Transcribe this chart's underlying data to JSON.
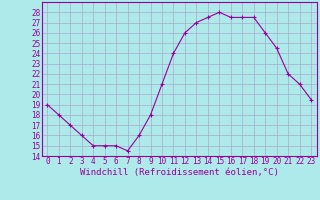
{
  "x": [
    0,
    1,
    2,
    3,
    4,
    5,
    6,
    7,
    8,
    9,
    10,
    11,
    12,
    13,
    14,
    15,
    16,
    17,
    18,
    19,
    20,
    21,
    22,
    23
  ],
  "y": [
    19,
    18,
    17,
    16,
    15,
    15,
    15,
    14.5,
    16,
    18,
    21,
    24,
    26,
    27,
    27.5,
    28,
    27.5,
    27.5,
    27.5,
    26,
    24.5,
    22,
    21,
    19.5
  ],
  "line_color": "#990099",
  "marker": "+",
  "bg_color": "#aeeaea",
  "grid_color": "#aaaacc",
  "xlabel": "Windchill (Refroidissement éolien,°C)",
  "xlabel_color": "#990099",
  "tick_color": "#990099",
  "ylim": [
    14,
    29
  ],
  "xlim": [
    -0.5,
    23.5
  ],
  "yticks": [
    14,
    15,
    16,
    17,
    18,
    19,
    20,
    21,
    22,
    23,
    24,
    25,
    26,
    27,
    28
  ],
  "xticks": [
    0,
    1,
    2,
    3,
    4,
    5,
    6,
    7,
    8,
    9,
    10,
    11,
    12,
    13,
    14,
    15,
    16,
    17,
    18,
    19,
    20,
    21,
    22,
    23
  ],
  "xtick_labels": [
    "0",
    "1",
    "2",
    "3",
    "4",
    "5",
    "6",
    "7",
    "8",
    "9",
    "10",
    "11",
    "12",
    "13",
    "14",
    "15",
    "16",
    "17",
    "18",
    "19",
    "20",
    "21",
    "22",
    "23"
  ],
  "ytick_labels": [
    "14",
    "15",
    "16",
    "17",
    "18",
    "19",
    "20",
    "21",
    "22",
    "23",
    "24",
    "25",
    "26",
    "27",
    "28"
  ],
  "spine_color": "#990099",
  "font_size_ticks": 5.5,
  "font_size_xlabel": 6.5,
  "linewidth": 0.8,
  "markersize": 3,
  "markeredgewidth": 0.8
}
